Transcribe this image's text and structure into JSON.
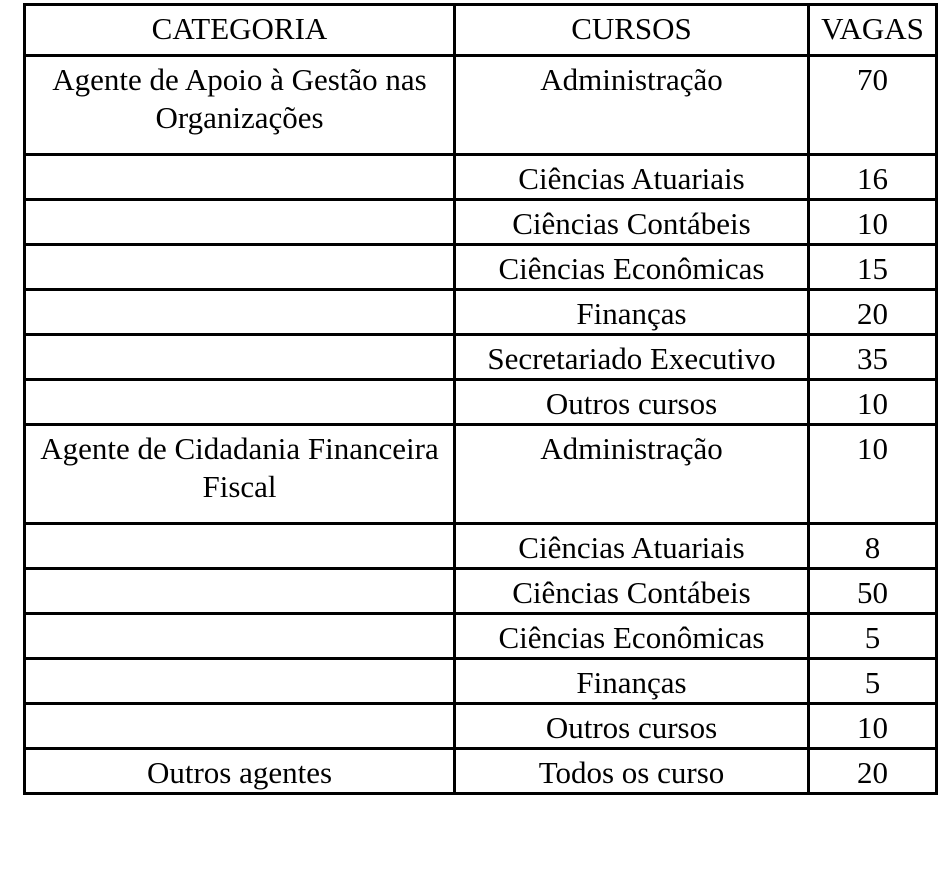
{
  "headers": {
    "categoria": "CATEGORIA",
    "cursos": "CURSOS",
    "vagas": "VAGAS"
  },
  "rows": [
    {
      "categoria": "Agente de Apoio à Gestão nas Organizações",
      "curso": "Administração",
      "vagas": "70"
    },
    {
      "categoria": "",
      "curso": "Ciências Atuariais",
      "vagas": "16"
    },
    {
      "categoria": "",
      "curso": "Ciências Contábeis",
      "vagas": "10"
    },
    {
      "categoria": "",
      "curso": "Ciências Econômicas",
      "vagas": "15"
    },
    {
      "categoria": "",
      "curso": "Finanças",
      "vagas": "20"
    },
    {
      "categoria": "",
      "curso": "Secretariado Executivo",
      "vagas": "35"
    },
    {
      "categoria": "",
      "curso": "Outros cursos",
      "vagas": "10"
    },
    {
      "categoria": "Agente de Cidadania Financeira Fiscal",
      "curso": "Administração",
      "vagas": "10"
    },
    {
      "categoria": "",
      "curso": "Ciências Atuariais",
      "vagas": "8"
    },
    {
      "categoria": "",
      "curso": "Ciências Contábeis",
      "vagas": "50"
    },
    {
      "categoria": "",
      "curso": "Ciências Econômicas",
      "vagas": "5"
    },
    {
      "categoria": "",
      "curso": "Finanças",
      "vagas": "5"
    },
    {
      "categoria": "",
      "curso": "Outros cursos",
      "vagas": "10"
    },
    {
      "categoria": "Outros agentes",
      "curso": "Todos os curso",
      "vagas": "20"
    }
  ]
}
